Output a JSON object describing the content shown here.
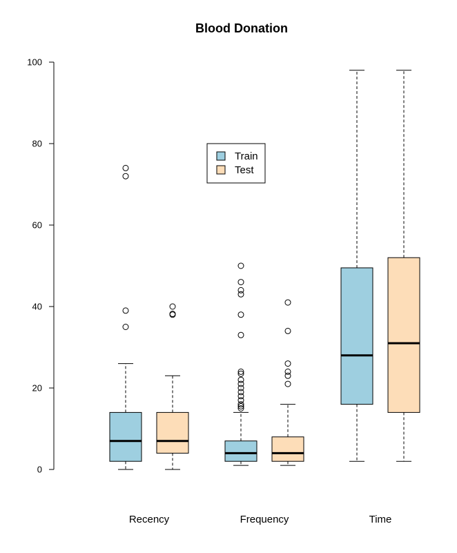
{
  "chart_data": {
    "type": "box",
    "title": "Blood Donation",
    "xlabel": "",
    "ylabel": "",
    "ylim": [
      0,
      100
    ],
    "yticks": [
      0,
      20,
      40,
      60,
      80,
      100
    ],
    "categories": [
      "Recency",
      "Frequency",
      "Time"
    ],
    "legend": {
      "position": "top-center",
      "entries": [
        "Train",
        "Test"
      ]
    },
    "grid": false,
    "series": [
      {
        "name": "Train",
        "color": "#9ECFE0",
        "boxes": [
          {
            "category": "Recency",
            "min": 0,
            "q1": 2,
            "median": 7,
            "q3": 14,
            "max": 26,
            "outliers": [
              35,
              39,
              72,
              74
            ]
          },
          {
            "category": "Frequency",
            "min": 1,
            "q1": 2,
            "median": 4,
            "q3": 7,
            "max": 14,
            "outliers": [
              15,
              15.5,
              16,
              17,
              18,
              19,
              20,
              21,
              22,
              23.5,
              24,
              33,
              38,
              43,
              44,
              46,
              50
            ]
          },
          {
            "category": "Time",
            "min": 2,
            "q1": 16,
            "median": 28,
            "q3": 49.5,
            "max": 98,
            "outliers": []
          }
        ]
      },
      {
        "name": "Test",
        "color": "#FDDDB8",
        "boxes": [
          {
            "category": "Recency",
            "min": 0,
            "q1": 4,
            "median": 7,
            "q3": 14,
            "max": 23,
            "outliers": [
              38,
              38.2,
              40
            ]
          },
          {
            "category": "Frequency",
            "min": 1,
            "q1": 2,
            "median": 4,
            "q3": 8,
            "max": 16,
            "outliers": [
              21,
              23,
              24,
              26,
              34,
              41
            ]
          },
          {
            "category": "Time",
            "min": 2,
            "q1": 14,
            "median": 31,
            "q3": 52,
            "max": 98,
            "outliers": []
          }
        ]
      }
    ]
  }
}
